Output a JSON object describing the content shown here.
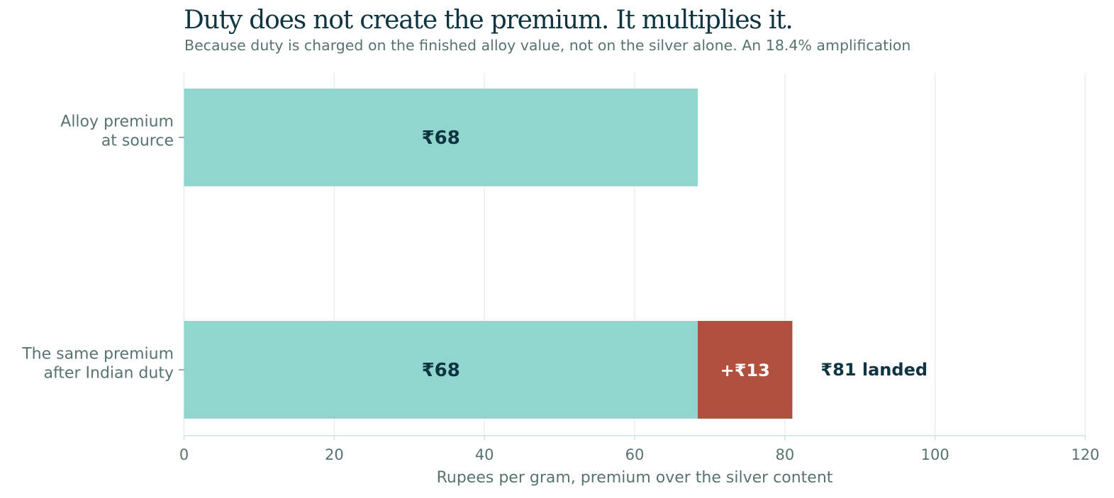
{
  "header": {
    "title": "Duty does not create the premium. It multiplies it.",
    "subtitle": "Because duty is charged on the finished alloy value, not on the silver alone. An 18.4% amplification"
  },
  "chart_data": {
    "type": "bar",
    "orientation": "horizontal",
    "stacked": true,
    "title": "Duty does not create the premium. It multiplies it.",
    "subtitle": "Because duty is charged on the finished alloy value, not on the silver alone. An 18.4% amplification",
    "categories": [
      [
        "Alloy premium",
        "at source"
      ],
      [
        "The same premium",
        "after Indian duty"
      ]
    ],
    "series": [
      {
        "values": [
          68.4,
          68.4
        ],
        "labels": [
          "₹68",
          "₹68"
        ],
        "color": "#90d6cf"
      },
      {
        "values": [
          0,
          12.6
        ],
        "labels": [
          "",
          "+₹13"
        ],
        "color": "#b0503e"
      }
    ],
    "totals": [
      "",
      "₹81 landed"
    ],
    "xlabel": "Rupees per gram, premium over the silver content",
    "ylabel": "",
    "xlim": [
      0,
      120
    ],
    "xticks": [
      0,
      20,
      40,
      60,
      80,
      100,
      120
    ],
    "grid": "vertical",
    "colors": {
      "base": "#90d6cf",
      "duty": "#b0503e",
      "text_dark": "#0d3440",
      "text_muted": "#587272",
      "grid": "#e8eeee",
      "axis": "#cfe3e3"
    }
  }
}
